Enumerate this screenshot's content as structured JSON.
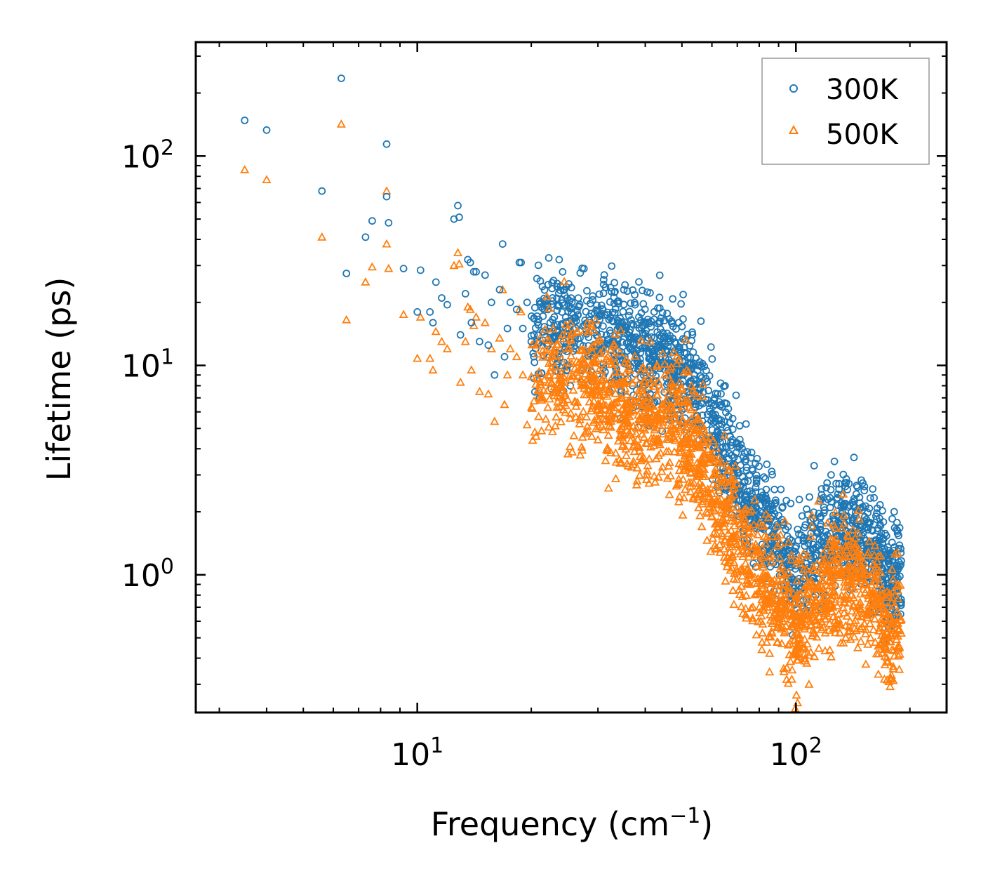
{
  "chart_data": {
    "type": "scatter",
    "title": "",
    "xlabel": "Frequency (cm",
    "xlabel_sup": "−1",
    "xlabel_close": ")",
    "ylabel": "Lifetime (ps)",
    "xscale": "log",
    "yscale": "log",
    "xlim": [
      2.6,
      250
    ],
    "ylim": [
      0.22,
      350
    ],
    "x_ticks": [
      {
        "value": 10,
        "base": "10",
        "exp": "1"
      },
      {
        "value": 100,
        "base": "10",
        "exp": "2"
      }
    ],
    "y_ticks": [
      {
        "value": 1,
        "base": "10",
        "exp": "0"
      },
      {
        "value": 10,
        "base": "10",
        "exp": "1"
      },
      {
        "value": 100,
        "base": "10",
        "exp": "2"
      }
    ],
    "legend_position": "top-right",
    "series": [
      {
        "name": "300K",
        "marker": "circle",
        "color": "#1f77b4",
        "sparse_points": [
          [
            3.5,
            148
          ],
          [
            4.0,
            133
          ],
          [
            5.6,
            68
          ],
          [
            6.3,
            235
          ],
          [
            6.5,
            27.5
          ],
          [
            7.3,
            41
          ],
          [
            7.6,
            49
          ],
          [
            8.3,
            114
          ],
          [
            8.3,
            64
          ],
          [
            8.4,
            48
          ],
          [
            9.2,
            29
          ],
          [
            10.0,
            18
          ],
          [
            10.2,
            28.5
          ],
          [
            10.8,
            18
          ],
          [
            11.0,
            16
          ],
          [
            11.2,
            25
          ],
          [
            11.6,
            21
          ],
          [
            12.0,
            19.5
          ],
          [
            12.5,
            50
          ],
          [
            12.8,
            58
          ],
          [
            12.9,
            51
          ],
          [
            13.0,
            14
          ],
          [
            13.4,
            22
          ],
          [
            13.6,
            32
          ],
          [
            13.8,
            31
          ],
          [
            13.9,
            16
          ],
          [
            14.1,
            28
          ],
          [
            14.3,
            28
          ],
          [
            14.6,
            13
          ],
          [
            15.1,
            27
          ],
          [
            15.4,
            12.5
          ],
          [
            15.7,
            20
          ],
          [
            16.0,
            9
          ],
          [
            16.5,
            23
          ],
          [
            16.8,
            38
          ],
          [
            17.0,
            11
          ],
          [
            17.3,
            15
          ],
          [
            17.6,
            20
          ],
          [
            18.3,
            18.5
          ],
          [
            18.6,
            31
          ],
          [
            18.8,
            31
          ],
          [
            19.0,
            15
          ],
          [
            19.5,
            20
          ],
          [
            20.0,
            13
          ],
          [
            21.2,
            19
          ],
          [
            23.7,
            32
          ],
          [
            37.6,
            19.5
          ]
        ],
        "dense_profile": {
          "x": [
            20,
            25,
            30,
            35,
            40,
            45,
            50,
            55,
            58,
            62,
            66,
            72,
            80,
            88,
            95,
            100,
            110,
            120,
            135,
            150,
            165,
            175,
            190
          ],
          "center": [
            14.5,
            15.5,
            14.5,
            12.5,
            11.2,
            10.6,
            9.6,
            8.0,
            6.5,
            4.6,
            3.6,
            2.6,
            1.95,
            1.55,
            1.15,
            0.85,
            1.35,
            1.6,
            1.75,
            1.6,
            1.3,
            0.95,
            1.0
          ],
          "spread_dex": 0.17
        }
      },
      {
        "name": "500K",
        "marker": "triangle",
        "color": "#ff7f0e",
        "sparse_points": [
          [
            3.5,
            86
          ],
          [
            4.0,
            77
          ],
          [
            5.6,
            41
          ],
          [
            6.3,
            142
          ],
          [
            6.5,
            16.5
          ],
          [
            7.3,
            25
          ],
          [
            7.6,
            29.5
          ],
          [
            8.3,
            68
          ],
          [
            8.3,
            38
          ],
          [
            8.4,
            29
          ],
          [
            9.2,
            17.5
          ],
          [
            10.0,
            10.8
          ],
          [
            10.2,
            17
          ],
          [
            10.8,
            10.8
          ],
          [
            11.0,
            9.5
          ],
          [
            11.2,
            14.5
          ],
          [
            11.6,
            13
          ],
          [
            12.0,
            12
          ],
          [
            12.5,
            30
          ],
          [
            12.8,
            34.5
          ],
          [
            12.9,
            30.5
          ],
          [
            13.0,
            8.3
          ],
          [
            13.4,
            13
          ],
          [
            13.6,
            19
          ],
          [
            13.8,
            18.5
          ],
          [
            13.9,
            9.5
          ],
          [
            14.1,
            15.5
          ],
          [
            14.3,
            17
          ],
          [
            14.6,
            7.5
          ],
          [
            15.1,
            16
          ],
          [
            15.4,
            7.3
          ],
          [
            15.7,
            12
          ],
          [
            16.0,
            5.4
          ],
          [
            16.5,
            13.5
          ],
          [
            16.8,
            23
          ],
          [
            17.0,
            6.5
          ],
          [
            17.3,
            9
          ],
          [
            17.6,
            12
          ],
          [
            18.3,
            11
          ],
          [
            18.6,
            18.5
          ],
          [
            18.8,
            18
          ],
          [
            19.0,
            9
          ],
          [
            19.5,
            5.2
          ]
        ],
        "dense_profile": {
          "x": [
            20,
            25,
            30,
            35,
            40,
            45,
            50,
            55,
            58,
            62,
            66,
            72,
            80,
            88,
            95,
            100,
            110,
            120,
            135,
            150,
            165,
            175,
            190
          ],
          "center": [
            9.0,
            9.0,
            7.5,
            6.0,
            5.5,
            5.4,
            4.9,
            4.0,
            3.2,
            2.3,
            1.8,
            1.3,
            1.0,
            0.82,
            0.66,
            0.55,
            0.7,
            0.85,
            0.95,
            0.88,
            0.72,
            0.52,
            0.6
          ],
          "spread_dex": 0.19
        }
      }
    ]
  }
}
